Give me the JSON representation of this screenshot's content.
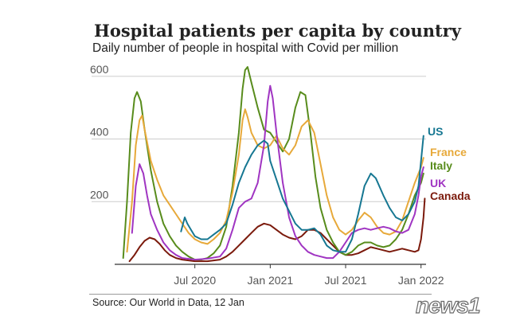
{
  "title": "Hospital patients per capita by country",
  "subtitle": "Daily number of people in hospital with Covid per million",
  "source": "Source: Our World in Data, 12 Jan",
  "watermark": "news1",
  "chart_data": {
    "type": "line",
    "title": "Hospital patients per capita by country",
    "ylabel": "Daily number of people in hospital with Covid per million",
    "xlim": [
      0,
      24.4
    ],
    "ylim": [
      0,
      620
    ],
    "y_ticks": [
      200,
      400,
      600
    ],
    "x_ticks": [
      {
        "label": "Jul 2020",
        "t": 6
      },
      {
        "label": "Jan 2021",
        "t": 12
      },
      {
        "label": "Jul 2021",
        "t": 18
      },
      {
        "label": "Jan 2022",
        "t": 24
      }
    ],
    "series": [
      {
        "name": "US",
        "color": "#167792",
        "points": [
          [
            4.9,
            105
          ],
          [
            5.2,
            150
          ],
          [
            5.4,
            130
          ],
          [
            5.7,
            110
          ],
          [
            6.0,
            90
          ],
          [
            6.5,
            80
          ],
          [
            7.0,
            80
          ],
          [
            7.5,
            95
          ],
          [
            8.0,
            110
          ],
          [
            8.5,
            130
          ],
          [
            9.0,
            190
          ],
          [
            9.5,
            260
          ],
          [
            10.0,
            310
          ],
          [
            10.5,
            350
          ],
          [
            11.0,
            380
          ],
          [
            11.5,
            395
          ],
          [
            11.8,
            385
          ],
          [
            12.0,
            330
          ],
          [
            12.5,
            270
          ],
          [
            13.0,
            210
          ],
          [
            13.5,
            170
          ],
          [
            14.0,
            130
          ],
          [
            14.5,
            110
          ],
          [
            15.0,
            110
          ],
          [
            15.5,
            115
          ],
          [
            16.0,
            95
          ],
          [
            16.5,
            60
          ],
          [
            17.0,
            45
          ],
          [
            17.5,
            40
          ],
          [
            18.0,
            40
          ],
          [
            18.5,
            80
          ],
          [
            19.0,
            160
          ],
          [
            19.5,
            250
          ],
          [
            20.0,
            290
          ],
          [
            20.4,
            275
          ],
          [
            21.0,
            220
          ],
          [
            21.5,
            180
          ],
          [
            22.0,
            150
          ],
          [
            22.5,
            140
          ],
          [
            23.0,
            160
          ],
          [
            23.5,
            200
          ],
          [
            23.8,
            250
          ],
          [
            24.0,
            330
          ],
          [
            24.2,
            410
          ]
        ]
      },
      {
        "name": "France",
        "color": "#e7a93a",
        "points": [
          [
            0.6,
            40
          ],
          [
            1.0,
            200
          ],
          [
            1.3,
            380
          ],
          [
            1.6,
            460
          ],
          [
            1.8,
            475
          ],
          [
            2.0,
            430
          ],
          [
            2.5,
            330
          ],
          [
            3.0,
            270
          ],
          [
            3.5,
            220
          ],
          [
            4.0,
            190
          ],
          [
            4.5,
            160
          ],
          [
            5.0,
            130
          ],
          [
            5.5,
            100
          ],
          [
            6.0,
            80
          ],
          [
            6.5,
            70
          ],
          [
            7.0,
            65
          ],
          [
            7.5,
            80
          ],
          [
            8.0,
            100
          ],
          [
            8.5,
            140
          ],
          [
            9.0,
            230
          ],
          [
            9.5,
            350
          ],
          [
            9.8,
            460
          ],
          [
            10.0,
            495
          ],
          [
            10.2,
            470
          ],
          [
            10.5,
            420
          ],
          [
            11.0,
            380
          ],
          [
            11.5,
            370
          ],
          [
            12.0,
            380
          ],
          [
            12.5,
            410
          ],
          [
            13.0,
            370
          ],
          [
            13.5,
            350
          ],
          [
            14.0,
            380
          ],
          [
            14.5,
            440
          ],
          [
            15.0,
            460
          ],
          [
            15.5,
            420
          ],
          [
            16.0,
            320
          ],
          [
            16.5,
            220
          ],
          [
            17.0,
            150
          ],
          [
            17.5,
            110
          ],
          [
            18.0,
            95
          ],
          [
            18.5,
            110
          ],
          [
            19.0,
            140
          ],
          [
            19.5,
            165
          ],
          [
            20.0,
            150
          ],
          [
            20.5,
            120
          ],
          [
            21.0,
            100
          ],
          [
            21.5,
            95
          ],
          [
            22.0,
            105
          ],
          [
            22.5,
            140
          ],
          [
            23.0,
            200
          ],
          [
            23.5,
            260
          ],
          [
            24.0,
            310
          ],
          [
            24.2,
            340
          ]
        ]
      },
      {
        "name": "Italy",
        "color": "#588c1c",
        "points": [
          [
            0.3,
            20
          ],
          [
            0.6,
            200
          ],
          [
            0.9,
            420
          ],
          [
            1.2,
            530
          ],
          [
            1.4,
            550
          ],
          [
            1.7,
            520
          ],
          [
            2.0,
            430
          ],
          [
            2.5,
            300
          ],
          [
            3.0,
            200
          ],
          [
            3.5,
            130
          ],
          [
            4.0,
            90
          ],
          [
            4.5,
            60
          ],
          [
            5.0,
            40
          ],
          [
            5.5,
            25
          ],
          [
            6.0,
            15
          ],
          [
            6.5,
            15
          ],
          [
            7.0,
            20
          ],
          [
            7.5,
            35
          ],
          [
            8.0,
            60
          ],
          [
            8.5,
            120
          ],
          [
            9.0,
            250
          ],
          [
            9.5,
            420
          ],
          [
            9.8,
            560
          ],
          [
            10.0,
            620
          ],
          [
            10.2,
            630
          ],
          [
            10.5,
            580
          ],
          [
            11.0,
            500
          ],
          [
            11.5,
            430
          ],
          [
            12.0,
            420
          ],
          [
            12.5,
            390
          ],
          [
            13.0,
            360
          ],
          [
            13.5,
            400
          ],
          [
            14.0,
            500
          ],
          [
            14.4,
            550
          ],
          [
            14.8,
            540
          ],
          [
            15.2,
            420
          ],
          [
            15.6,
            280
          ],
          [
            16.0,
            180
          ],
          [
            16.5,
            110
          ],
          [
            17.0,
            70
          ],
          [
            17.5,
            40
          ],
          [
            18.0,
            30
          ],
          [
            18.5,
            40
          ],
          [
            19.0,
            60
          ],
          [
            19.5,
            70
          ],
          [
            20.0,
            70
          ],
          [
            20.5,
            60
          ],
          [
            21.0,
            55
          ],
          [
            21.5,
            60
          ],
          [
            22.0,
            80
          ],
          [
            22.5,
            110
          ],
          [
            23.0,
            160
          ],
          [
            23.5,
            220
          ],
          [
            24.0,
            260
          ],
          [
            24.2,
            290
          ]
        ]
      },
      {
        "name": "UK",
        "color": "#a035c2",
        "points": [
          [
            1.0,
            100
          ],
          [
            1.3,
            250
          ],
          [
            1.6,
            320
          ],
          [
            1.9,
            290
          ],
          [
            2.2,
            220
          ],
          [
            2.5,
            160
          ],
          [
            3.0,
            110
          ],
          [
            3.5,
            70
          ],
          [
            4.0,
            45
          ],
          [
            4.5,
            30
          ],
          [
            5.0,
            20
          ],
          [
            6.0,
            15
          ],
          [
            7.0,
            18
          ],
          [
            8.0,
            25
          ],
          [
            8.5,
            50
          ],
          [
            9.0,
            110
          ],
          [
            9.5,
            180
          ],
          [
            10.0,
            200
          ],
          [
            10.5,
            210
          ],
          [
            11.0,
            260
          ],
          [
            11.5,
            380
          ],
          [
            11.8,
            520
          ],
          [
            12.0,
            570
          ],
          [
            12.2,
            530
          ],
          [
            12.5,
            420
          ],
          [
            13.0,
            260
          ],
          [
            13.5,
            150
          ],
          [
            14.0,
            90
          ],
          [
            14.5,
            60
          ],
          [
            15.0,
            40
          ],
          [
            15.5,
            30
          ],
          [
            16.0,
            25
          ],
          [
            16.5,
            20
          ],
          [
            17.0,
            20
          ],
          [
            17.5,
            40
          ],
          [
            18.0,
            70
          ],
          [
            18.5,
            100
          ],
          [
            19.0,
            110
          ],
          [
            19.5,
            115
          ],
          [
            20.0,
            110
          ],
          [
            20.5,
            115
          ],
          [
            21.0,
            120
          ],
          [
            21.5,
            115
          ],
          [
            22.0,
            105
          ],
          [
            22.5,
            100
          ],
          [
            23.0,
            110
          ],
          [
            23.5,
            160
          ],
          [
            23.8,
            220
          ],
          [
            24.0,
            280
          ],
          [
            24.2,
            310
          ]
        ]
      },
      {
        "name": "Canada",
        "color": "#7b1a0c",
        "points": [
          [
            0.8,
            10
          ],
          [
            1.2,
            30
          ],
          [
            1.6,
            55
          ],
          [
            2.0,
            75
          ],
          [
            2.4,
            85
          ],
          [
            2.8,
            80
          ],
          [
            3.2,
            65
          ],
          [
            3.6,
            45
          ],
          [
            4.0,
            30
          ],
          [
            4.5,
            20
          ],
          [
            5.0,
            15
          ],
          [
            6.0,
            10
          ],
          [
            7.0,
            10
          ],
          [
            8.0,
            15
          ],
          [
            8.5,
            25
          ],
          [
            9.0,
            40
          ],
          [
            9.5,
            60
          ],
          [
            10.0,
            80
          ],
          [
            10.5,
            100
          ],
          [
            11.0,
            120
          ],
          [
            11.5,
            130
          ],
          [
            12.0,
            125
          ],
          [
            12.5,
            110
          ],
          [
            13.0,
            95
          ],
          [
            13.5,
            85
          ],
          [
            14.0,
            80
          ],
          [
            14.5,
            90
          ],
          [
            15.0,
            110
          ],
          [
            15.5,
            110
          ],
          [
            16.0,
            100
          ],
          [
            16.5,
            80
          ],
          [
            17.0,
            60
          ],
          [
            17.5,
            40
          ],
          [
            18.0,
            30
          ],
          [
            18.5,
            30
          ],
          [
            19.0,
            35
          ],
          [
            19.5,
            45
          ],
          [
            20.0,
            55
          ],
          [
            20.5,
            50
          ],
          [
            21.0,
            45
          ],
          [
            21.5,
            40
          ],
          [
            22.0,
            45
          ],
          [
            22.5,
            50
          ],
          [
            23.0,
            45
          ],
          [
            23.5,
            40
          ],
          [
            23.8,
            45
          ],
          [
            24.0,
            80
          ],
          [
            24.2,
            150
          ],
          [
            24.3,
            210
          ]
        ]
      }
    ]
  }
}
